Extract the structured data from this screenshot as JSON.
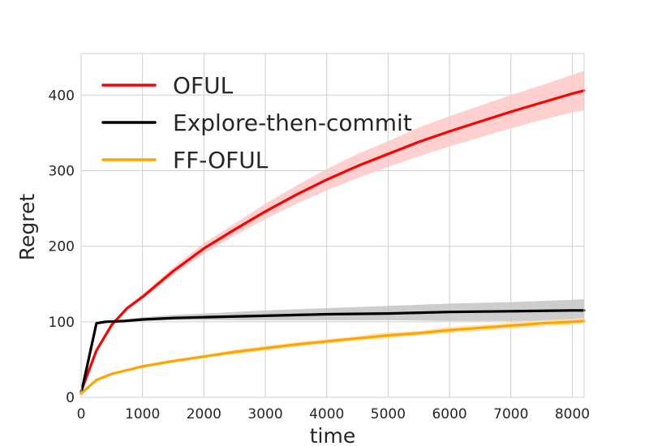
{
  "chart_data": {
    "type": "line",
    "title": "",
    "xlabel": "time",
    "ylabel": "Regret",
    "xlim": [
      0,
      8192
    ],
    "ylim": [
      0,
      455
    ],
    "xticks": [
      0,
      1000,
      2000,
      3000,
      4000,
      5000,
      6000,
      7000,
      8000
    ],
    "yticks": [
      0,
      100,
      200,
      300,
      400
    ],
    "grid": true,
    "legend_position": "top-left",
    "series": [
      {
        "name": "OFUL",
        "color": "#ff0000",
        "band_color": "#ffc8c8",
        "x": [
          0,
          250,
          500,
          750,
          1000,
          1500,
          2000,
          2500,
          3000,
          3500,
          4000,
          4500,
          5000,
          5500,
          6000,
          6500,
          7000,
          7500,
          8000,
          8192
        ],
        "y": [
          8,
          62,
          96,
          118,
          133,
          167,
          197,
          222,
          246,
          268,
          288,
          306,
          322,
          338,
          352,
          365,
          378,
          390,
          402,
          406
        ],
        "lower": [
          8,
          61,
          94,
          116,
          130,
          162,
          190,
          214,
          236,
          256,
          274,
          290,
          305,
          319,
          332,
          344,
          356,
          367,
          377,
          380
        ],
        "upper": [
          8,
          63,
          98,
          120,
          136,
          172,
          204,
          230,
          256,
          280,
          302,
          322,
          339,
          357,
          372,
          386,
          400,
          413,
          427,
          432
        ]
      },
      {
        "name": "Explore-then-commit",
        "color": "#000000",
        "band_color": "#c4c4c4",
        "x": [
          0,
          250,
          400,
          700,
          1000,
          1500,
          2000,
          3000,
          4000,
          5000,
          6000,
          7000,
          8000,
          8192
        ],
        "y": [
          5,
          98,
          100,
          101,
          103,
          105,
          106,
          108,
          110,
          111,
          113,
          114,
          115,
          115
        ],
        "lower": [
          5,
          98,
          99,
          100,
          101,
          102,
          102,
          102,
          102,
          102,
          101,
          101,
          101,
          101
        ],
        "upper": [
          5,
          98,
          101,
          103,
          106,
          109,
          111,
          115,
          118,
          121,
          124,
          126,
          129,
          130
        ]
      },
      {
        "name": "FF-OFUL",
        "color": "#ffa500",
        "band_color": "#ffe0a8",
        "x": [
          0,
          250,
          500,
          750,
          1000,
          1500,
          2000,
          2500,
          3000,
          3500,
          4000,
          4500,
          5000,
          5500,
          6000,
          6500,
          7000,
          7500,
          8000,
          8192
        ],
        "y": [
          5,
          23,
          31,
          36,
          41,
          48,
          54,
          60,
          65,
          70,
          74,
          78,
          82,
          85,
          89,
          92,
          95,
          98,
          100,
          101
        ],
        "lower": [
          5,
          22,
          30,
          35,
          39,
          46,
          52,
          57,
          62,
          67,
          71,
          75,
          78,
          82,
          85,
          88,
          91,
          94,
          96,
          97
        ],
        "upper": [
          5,
          24,
          32,
          37,
          43,
          50,
          56,
          63,
          68,
          73,
          77,
          81,
          86,
          88,
          93,
          96,
          99,
          102,
          104,
          105
        ]
      }
    ]
  }
}
